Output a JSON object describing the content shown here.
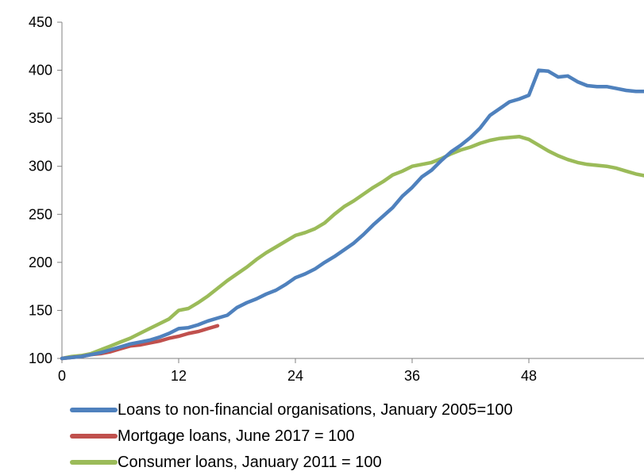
{
  "chart_data": {
    "type": "line",
    "title": "",
    "xlabel": "",
    "ylabel": "",
    "xlim": [
      0,
      60
    ],
    "ylim": [
      100,
      450
    ],
    "x_ticks": [
      "0",
      "12",
      "24",
      "36",
      "48"
    ],
    "y_ticks": [
      "100",
      "150",
      "200",
      "250",
      "300",
      "350",
      "400",
      "450"
    ],
    "grid": false,
    "legend_position": "bottom",
    "series": [
      {
        "name": "Loans to non-financial organisations, January 2005=100",
        "color": "#4f81bd",
        "x": [
          0,
          1,
          2,
          3,
          4,
          5,
          6,
          7,
          8,
          9,
          10,
          11,
          12,
          13,
          14,
          15,
          16,
          17,
          18,
          19,
          20,
          21,
          22,
          23,
          24,
          25,
          26,
          27,
          28,
          29,
          30,
          31,
          32,
          33,
          34,
          35,
          36,
          37,
          38,
          39,
          40,
          41,
          42,
          43,
          44,
          45,
          46,
          47,
          48,
          49,
          50,
          51,
          52,
          53,
          54,
          55,
          56,
          57,
          58,
          59,
          60
        ],
        "values": [
          100,
          101,
          102,
          104,
          106,
          109,
          112,
          115,
          117,
          119,
          122,
          126,
          131,
          132,
          135,
          139,
          142,
          145,
          153,
          158,
          162,
          167,
          171,
          177,
          184,
          188,
          193,
          200,
          206,
          213,
          220,
          229,
          239,
          248,
          257,
          269,
          278,
          289,
          296,
          306,
          315,
          322,
          330,
          340,
          353,
          360,
          367,
          370,
          374,
          400,
          399,
          393,
          394,
          388,
          384,
          383,
          383,
          381,
          379,
          378,
          378
        ]
      },
      {
        "name": "Mortgage loans, June 2017 = 100",
        "color": "#c0504d",
        "x": [
          0,
          1,
          2,
          3,
          4,
          5,
          6,
          7,
          8,
          9,
          10,
          11,
          12,
          13,
          14,
          15,
          16
        ],
        "values": [
          100,
          101,
          102,
          104,
          105,
          107,
          110,
          113,
          114,
          116,
          118,
          121,
          123,
          126,
          128,
          131,
          134
        ]
      },
      {
        "name": "Consumer loans, January 2011 = 100",
        "color": "#9bbb59",
        "x": [
          0,
          1,
          2,
          3,
          4,
          5,
          6,
          7,
          8,
          9,
          10,
          11,
          12,
          13,
          14,
          15,
          16,
          17,
          18,
          19,
          20,
          21,
          22,
          23,
          24,
          25,
          26,
          27,
          28,
          29,
          30,
          31,
          32,
          33,
          34,
          35,
          36,
          37,
          38,
          39,
          40,
          41,
          42,
          43,
          44,
          45,
          46,
          47,
          48,
          49,
          50,
          51,
          52,
          53,
          54,
          55,
          56,
          57,
          58,
          59,
          60
        ],
        "values": [
          100,
          102,
          103,
          105,
          109,
          113,
          117,
          121,
          126,
          131,
          136,
          141,
          150,
          152,
          158,
          165,
          173,
          181,
          188,
          195,
          203,
          210,
          216,
          222,
          228,
          231,
          235,
          241,
          250,
          258,
          264,
          271,
          278,
          284,
          291,
          295,
          300,
          302,
          304,
          308,
          313,
          317,
          320,
          324,
          327,
          329,
          330,
          331,
          328,
          322,
          316,
          311,
          307,
          304,
          302,
          301,
          300,
          298,
          295,
          292,
          290
        ]
      }
    ]
  }
}
